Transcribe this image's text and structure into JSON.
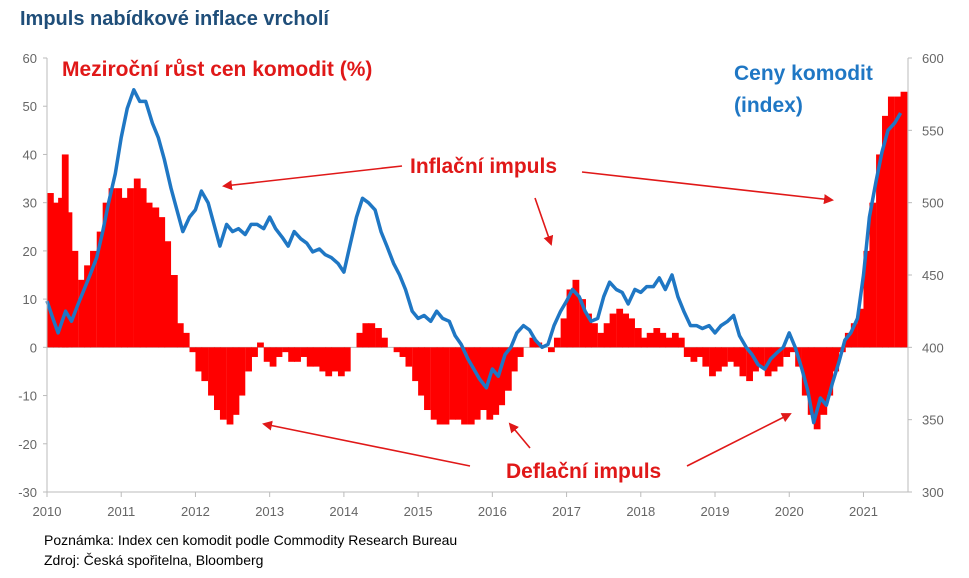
{
  "title": "Impuls nabídkové inflace vrcholí",
  "notes": {
    "line1": "Poznámka: Index cen komodit podle Commodity Research Bureau",
    "line2": "Zdroj: Česká spořitelna, Bloomberg"
  },
  "colors": {
    "bars": "#ff0000",
    "line": "#1f77c4",
    "annotation_red": "#e01818",
    "annotation_blue": "#1f77c4",
    "axis_text": "#666666",
    "title": "#1f4e79"
  },
  "chart_data": {
    "type": "bar+line",
    "title": "Impuls nabídkové inflace vrcholí",
    "x": {
      "ticks": [
        "2010",
        "2011",
        "2012",
        "2013",
        "2014",
        "2015",
        "2016",
        "2017",
        "2018",
        "2019",
        "2020",
        "2021"
      ],
      "range": [
        2010.0,
        2021.6
      ]
    },
    "y_left": {
      "label": "Meziroční růst cen komodit (%)",
      "range": [
        -30,
        60
      ],
      "ticks": [
        "60",
        "50",
        "40",
        "30",
        "20",
        "10",
        "0",
        "-10",
        "-20",
        "-30"
      ]
    },
    "y_right": {
      "label_lines": [
        "Ceny komodit",
        "(index)"
      ],
      "range": [
        300,
        600
      ],
      "ticks": [
        "600",
        "550",
        "500",
        "450",
        "400",
        "350",
        "300"
      ]
    },
    "series": [
      {
        "name": "Meziroční růst cen komodit (%)",
        "kind": "bar",
        "axis": "left",
        "points": [
          [
            2010.0,
            32
          ],
          [
            2010.08,
            30
          ],
          [
            2010.15,
            31
          ],
          [
            2010.2,
            40
          ],
          [
            2010.25,
            28
          ],
          [
            2010.33,
            20
          ],
          [
            2010.42,
            14
          ],
          [
            2010.5,
            17
          ],
          [
            2010.58,
            20
          ],
          [
            2010.67,
            24
          ],
          [
            2010.75,
            30
          ],
          [
            2010.83,
            33
          ],
          [
            2010.92,
            33
          ],
          [
            2011.0,
            31
          ],
          [
            2011.08,
            33
          ],
          [
            2011.17,
            35
          ],
          [
            2011.25,
            33
          ],
          [
            2011.33,
            30
          ],
          [
            2011.42,
            29
          ],
          [
            2011.5,
            27
          ],
          [
            2011.58,
            22
          ],
          [
            2011.67,
            15
          ],
          [
            2011.75,
            5
          ],
          [
            2011.83,
            3
          ],
          [
            2011.92,
            -1
          ],
          [
            2012.0,
            -5
          ],
          [
            2012.08,
            -7
          ],
          [
            2012.17,
            -10
          ],
          [
            2012.25,
            -13
          ],
          [
            2012.33,
            -15
          ],
          [
            2012.42,
            -16
          ],
          [
            2012.5,
            -14
          ],
          [
            2012.58,
            -10
          ],
          [
            2012.67,
            -5
          ],
          [
            2012.75,
            -2
          ],
          [
            2012.83,
            1
          ],
          [
            2012.92,
            -3
          ],
          [
            2013.0,
            -4
          ],
          [
            2013.08,
            -2
          ],
          [
            2013.17,
            -1
          ],
          [
            2013.25,
            -3
          ],
          [
            2013.33,
            -3
          ],
          [
            2013.42,
            -2
          ],
          [
            2013.5,
            -4
          ],
          [
            2013.58,
            -4
          ],
          [
            2013.67,
            -5
          ],
          [
            2013.75,
            -6
          ],
          [
            2013.83,
            -5
          ],
          [
            2013.92,
            -6
          ],
          [
            2014.0,
            -5
          ],
          [
            2014.08,
            0
          ],
          [
            2014.17,
            3
          ],
          [
            2014.25,
            5
          ],
          [
            2014.33,
            5
          ],
          [
            2014.42,
            4
          ],
          [
            2014.5,
            2
          ],
          [
            2014.58,
            0
          ],
          [
            2014.67,
            -1
          ],
          [
            2014.75,
            -2
          ],
          [
            2014.83,
            -4
          ],
          [
            2014.92,
            -7
          ],
          [
            2015.0,
            -10
          ],
          [
            2015.08,
            -13
          ],
          [
            2015.17,
            -15
          ],
          [
            2015.25,
            -16
          ],
          [
            2015.33,
            -16
          ],
          [
            2015.42,
            -15
          ],
          [
            2015.5,
            -15
          ],
          [
            2015.58,
            -16
          ],
          [
            2015.67,
            -16
          ],
          [
            2015.75,
            -15
          ],
          [
            2015.83,
            -13
          ],
          [
            2015.92,
            -15
          ],
          [
            2016.0,
            -14
          ],
          [
            2016.08,
            -12
          ],
          [
            2016.17,
            -9
          ],
          [
            2016.25,
            -5
          ],
          [
            2016.33,
            -2
          ],
          [
            2016.42,
            0
          ],
          [
            2016.5,
            2
          ],
          [
            2016.58,
            1
          ],
          [
            2016.67,
            0
          ],
          [
            2016.75,
            -1
          ],
          [
            2016.83,
            2
          ],
          [
            2016.92,
            6
          ],
          [
            2017.0,
            12
          ],
          [
            2017.08,
            14
          ],
          [
            2017.17,
            10
          ],
          [
            2017.25,
            7
          ],
          [
            2017.33,
            5
          ],
          [
            2017.42,
            3
          ],
          [
            2017.5,
            5
          ],
          [
            2017.58,
            7
          ],
          [
            2017.67,
            8
          ],
          [
            2017.75,
            7
          ],
          [
            2017.83,
            6
          ],
          [
            2017.92,
            4
          ],
          [
            2018.0,
            2
          ],
          [
            2018.08,
            3
          ],
          [
            2018.17,
            4
          ],
          [
            2018.25,
            3
          ],
          [
            2018.33,
            2
          ],
          [
            2018.42,
            3
          ],
          [
            2018.5,
            2
          ],
          [
            2018.58,
            -2
          ],
          [
            2018.67,
            -3
          ],
          [
            2018.75,
            -2
          ],
          [
            2018.83,
            -4
          ],
          [
            2018.92,
            -6
          ],
          [
            2019.0,
            -5
          ],
          [
            2019.08,
            -4
          ],
          [
            2019.17,
            -3
          ],
          [
            2019.25,
            -4
          ],
          [
            2019.33,
            -6
          ],
          [
            2019.42,
            -7
          ],
          [
            2019.5,
            -5
          ],
          [
            2019.58,
            -4
          ],
          [
            2019.67,
            -6
          ],
          [
            2019.75,
            -5
          ],
          [
            2019.83,
            -4
          ],
          [
            2019.92,
            -2
          ],
          [
            2020.0,
            -1
          ],
          [
            2020.08,
            -4
          ],
          [
            2020.17,
            -10
          ],
          [
            2020.25,
            -14
          ],
          [
            2020.33,
            -17
          ],
          [
            2020.42,
            -14
          ],
          [
            2020.5,
            -10
          ],
          [
            2020.58,
            -5
          ],
          [
            2020.67,
            -1
          ],
          [
            2020.75,
            3
          ],
          [
            2020.83,
            5
          ],
          [
            2020.92,
            8
          ],
          [
            2021.0,
            20
          ],
          [
            2021.08,
            30
          ],
          [
            2021.17,
            40
          ],
          [
            2021.25,
            48
          ],
          [
            2021.33,
            52
          ],
          [
            2021.42,
            52
          ],
          [
            2021.5,
            53
          ]
        ]
      },
      {
        "name": "Ceny komodit (index)",
        "kind": "line",
        "axis": "right",
        "points": [
          [
            2010.0,
            432
          ],
          [
            2010.08,
            420
          ],
          [
            2010.15,
            410
          ],
          [
            2010.25,
            425
          ],
          [
            2010.33,
            418
          ],
          [
            2010.42,
            430
          ],
          [
            2010.5,
            440
          ],
          [
            2010.58,
            450
          ],
          [
            2010.67,
            462
          ],
          [
            2010.75,
            480
          ],
          [
            2010.83,
            500
          ],
          [
            2010.92,
            520
          ],
          [
            2011.0,
            545
          ],
          [
            2011.08,
            565
          ],
          [
            2011.17,
            578
          ],
          [
            2011.25,
            570
          ],
          [
            2011.33,
            570
          ],
          [
            2011.42,
            555
          ],
          [
            2011.5,
            545
          ],
          [
            2011.58,
            530
          ],
          [
            2011.67,
            510
          ],
          [
            2011.75,
            495
          ],
          [
            2011.83,
            480
          ],
          [
            2011.92,
            490
          ],
          [
            2012.0,
            495
          ],
          [
            2012.08,
            508
          ],
          [
            2012.17,
            500
          ],
          [
            2012.25,
            485
          ],
          [
            2012.33,
            470
          ],
          [
            2012.42,
            485
          ],
          [
            2012.5,
            480
          ],
          [
            2012.58,
            482
          ],
          [
            2012.67,
            478
          ],
          [
            2012.75,
            485
          ],
          [
            2012.83,
            485
          ],
          [
            2012.92,
            482
          ],
          [
            2013.0,
            490
          ],
          [
            2013.08,
            482
          ],
          [
            2013.17,
            476
          ],
          [
            2013.25,
            470
          ],
          [
            2013.33,
            480
          ],
          [
            2013.42,
            475
          ],
          [
            2013.5,
            472
          ],
          [
            2013.58,
            466
          ],
          [
            2013.67,
            468
          ],
          [
            2013.75,
            464
          ],
          [
            2013.83,
            462
          ],
          [
            2013.92,
            458
          ],
          [
            2014.0,
            452
          ],
          [
            2014.08,
            470
          ],
          [
            2014.17,
            490
          ],
          [
            2014.25,
            503
          ],
          [
            2014.33,
            500
          ],
          [
            2014.42,
            495
          ],
          [
            2014.5,
            480
          ],
          [
            2014.58,
            470
          ],
          [
            2014.67,
            458
          ],
          [
            2014.75,
            450
          ],
          [
            2014.83,
            440
          ],
          [
            2014.92,
            425
          ],
          [
            2015.0,
            420
          ],
          [
            2015.08,
            422
          ],
          [
            2015.17,
            418
          ],
          [
            2015.25,
            425
          ],
          [
            2015.33,
            420
          ],
          [
            2015.42,
            418
          ],
          [
            2015.5,
            408
          ],
          [
            2015.58,
            402
          ],
          [
            2015.67,
            392
          ],
          [
            2015.75,
            385
          ],
          [
            2015.83,
            378
          ],
          [
            2015.92,
            372
          ],
          [
            2016.0,
            385
          ],
          [
            2016.08,
            380
          ],
          [
            2016.17,
            395
          ],
          [
            2016.25,
            400
          ],
          [
            2016.33,
            410
          ],
          [
            2016.42,
            415
          ],
          [
            2016.5,
            412
          ],
          [
            2016.58,
            405
          ],
          [
            2016.67,
            400
          ],
          [
            2016.75,
            402
          ],
          [
            2016.83,
            415
          ],
          [
            2016.92,
            425
          ],
          [
            2017.0,
            432
          ],
          [
            2017.08,
            440
          ],
          [
            2017.17,
            435
          ],
          [
            2017.25,
            425
          ],
          [
            2017.33,
            418
          ],
          [
            2017.42,
            420
          ],
          [
            2017.5,
            435
          ],
          [
            2017.58,
            445
          ],
          [
            2017.67,
            440
          ],
          [
            2017.75,
            438
          ],
          [
            2017.83,
            430
          ],
          [
            2017.92,
            440
          ],
          [
            2018.0,
            438
          ],
          [
            2018.08,
            442
          ],
          [
            2018.17,
            442
          ],
          [
            2018.25,
            448
          ],
          [
            2018.33,
            440
          ],
          [
            2018.42,
            450
          ],
          [
            2018.5,
            435
          ],
          [
            2018.58,
            425
          ],
          [
            2018.67,
            415
          ],
          [
            2018.75,
            415
          ],
          [
            2018.83,
            413
          ],
          [
            2018.92,
            415
          ],
          [
            2019.0,
            410
          ],
          [
            2019.08,
            415
          ],
          [
            2019.17,
            418
          ],
          [
            2019.25,
            422
          ],
          [
            2019.33,
            408
          ],
          [
            2019.42,
            400
          ],
          [
            2019.5,
            395
          ],
          [
            2019.58,
            388
          ],
          [
            2019.67,
            385
          ],
          [
            2019.75,
            392
          ],
          [
            2019.83,
            396
          ],
          [
            2019.92,
            400
          ],
          [
            2020.0,
            410
          ],
          [
            2020.08,
            400
          ],
          [
            2020.17,
            385
          ],
          [
            2020.25,
            370
          ],
          [
            2020.33,
            348
          ],
          [
            2020.42,
            365
          ],
          [
            2020.5,
            360
          ],
          [
            2020.58,
            375
          ],
          [
            2020.67,
            390
          ],
          [
            2020.75,
            405
          ],
          [
            2020.83,
            410
          ],
          [
            2020.92,
            420
          ],
          [
            2021.0,
            450
          ],
          [
            2021.08,
            490
          ],
          [
            2021.17,
            515
          ],
          [
            2021.25,
            535
          ],
          [
            2021.33,
            550
          ],
          [
            2021.42,
            555
          ],
          [
            2021.5,
            562
          ]
        ]
      }
    ],
    "annotations": [
      {
        "text": "Meziroční růst cen komodit (%)",
        "color": "red"
      },
      {
        "text": "Inflační impuls",
        "color": "red"
      },
      {
        "text": "Deflační impuls",
        "color": "red"
      },
      {
        "text_lines": [
          "Ceny komodit",
          "(index)"
        ],
        "color": "blue"
      }
    ]
  }
}
